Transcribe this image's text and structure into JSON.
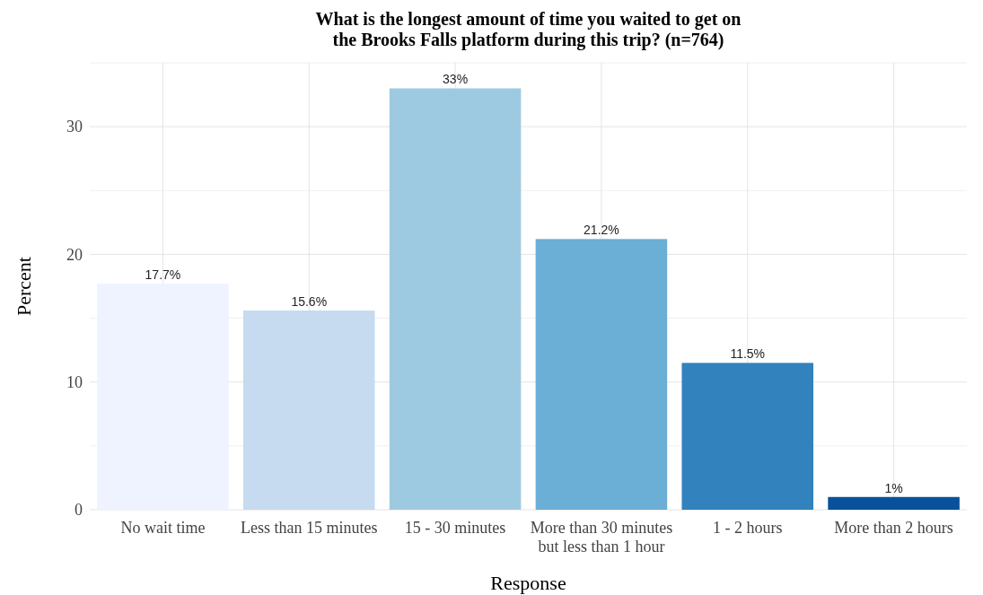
{
  "chart_data": {
    "type": "bar",
    "title": "What is the longest amount of time you waited to get on\nthe Brooks Falls platform during this trip? (n=764)",
    "xlabel": "Response",
    "ylabel": "Percent",
    "categories": [
      "No wait time",
      "Less than 15 minutes",
      "15 - 30 minutes",
      "More than 30 minutes\nbut less than 1 hour",
      "1 - 2 hours",
      "More than 2 hours"
    ],
    "values": [
      17.7,
      15.6,
      33,
      21.2,
      11.5,
      1
    ],
    "colors": [
      "#eff3ff",
      "#c6dbef",
      "#9ecae1",
      "#6baed6",
      "#3182bd",
      "#08519c"
    ],
    "value_labels": [
      "17.7%",
      "15.6%",
      "33%",
      "21.2%",
      "11.5%",
      "1%"
    ],
    "ylim": [
      0,
      35
    ],
    "yticks": [
      0,
      10,
      20,
      30
    ],
    "grid": true
  }
}
